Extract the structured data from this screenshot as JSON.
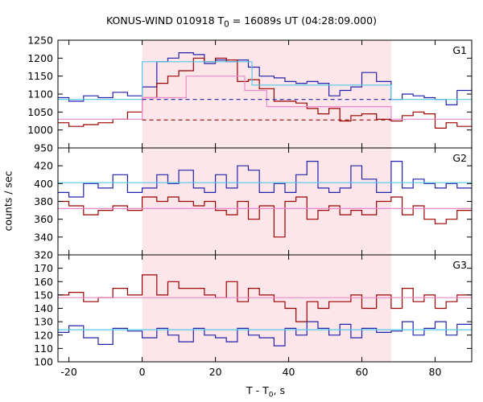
{
  "title_main": "KONUS-WIND 010918 T",
  "title_sub": "0",
  "title_rest": " = 16089s UT (04:28:09.000)",
  "ylabel": "counts / sec",
  "xlabel_main": "T - T",
  "xlabel_sub": "0",
  "xlabel_rest": ", s",
  "colors": {
    "blue": "#2222aa",
    "darkred": "#990000",
    "lightblue": "#55c8e8",
    "pink": "#ee88cc",
    "shade": "#fde6ea"
  },
  "chart_data": [
    {
      "type": "line",
      "panel": "G1",
      "xlim": [
        -23,
        90
      ],
      "ylim": [
        950,
        1250
      ],
      "yticks": [
        950,
        1000,
        1050,
        1100,
        1150,
        1200,
        1250
      ],
      "shaded_interval": [
        0,
        68
      ],
      "series": [
        {
          "color": "blue",
          "step": true,
          "x": [
            -23,
            -20,
            -16,
            -12,
            -8,
            -4,
            0,
            4,
            7,
            10,
            14,
            17,
            20,
            23,
            26,
            29,
            32,
            36,
            39,
            42,
            45,
            48,
            51,
            54,
            57,
            60,
            64,
            68,
            71,
            74,
            77,
            80,
            83,
            86,
            90
          ],
          "y": [
            1090,
            1080,
            1095,
            1090,
            1105,
            1095,
            1120,
            1190,
            1200,
            1215,
            1210,
            1185,
            1195,
            1190,
            1195,
            1175,
            1150,
            1145,
            1135,
            1130,
            1135,
            1130,
            1095,
            1110,
            1120,
            1160,
            1135,
            1085,
            1100,
            1095,
            1090,
            1085,
            1070,
            1110,
            1080
          ]
        },
        {
          "color": "darkred",
          "step": true,
          "x": [
            -23,
            -20,
            -16,
            -12,
            -8,
            -4,
            0,
            4,
            7,
            10,
            14,
            17,
            20,
            23,
            26,
            29,
            32,
            36,
            39,
            42,
            45,
            48,
            51,
            54,
            57,
            60,
            64,
            68,
            71,
            74,
            77,
            80,
            83,
            86,
            90
          ],
          "y": [
            1020,
            1010,
            1015,
            1020,
            1030,
            1050,
            1090,
            1130,
            1150,
            1165,
            1200,
            1190,
            1200,
            1195,
            1135,
            1140,
            1115,
            1080,
            1080,
            1075,
            1060,
            1045,
            1060,
            1025,
            1040,
            1045,
            1030,
            1025,
            1040,
            1050,
            1045,
            1005,
            1020,
            1010,
            1040
          ]
        },
        {
          "color": "lightblue",
          "step": false,
          "x": [
            -23,
            0,
            0,
            30,
            30,
            68,
            68,
            90
          ],
          "y": [
            1085,
            1085,
            1190,
            1190,
            1125,
            1125,
            1085,
            1085
          ]
        },
        {
          "color": "pink",
          "step": false,
          "x": [
            -23,
            0,
            0,
            12,
            12,
            28,
            28,
            34,
            34,
            68,
            68,
            90
          ],
          "y": [
            1030,
            1030,
            1090,
            1090,
            1150,
            1150,
            1110,
            1110,
            1065,
            1065,
            1030,
            1030
          ]
        },
        {
          "color": "blue",
          "dashed": true,
          "x": [
            0,
            68
          ],
          "y": [
            1085,
            1085
          ]
        },
        {
          "color": "darkred",
          "dashed": true,
          "x": [
            0,
            68
          ],
          "y": [
            1028,
            1028
          ]
        }
      ]
    },
    {
      "type": "line",
      "panel": "G2",
      "xlim": [
        -23,
        90
      ],
      "ylim": [
        320,
        440
      ],
      "yticks": [
        320,
        340,
        360,
        380,
        400,
        420
      ],
      "shaded_interval": [
        0,
        68
      ],
      "series": [
        {
          "color": "blue",
          "step": true,
          "x": [
            -23,
            -20,
            -16,
            -12,
            -8,
            -4,
            0,
            4,
            7,
            10,
            14,
            17,
            20,
            23,
            26,
            29,
            32,
            36,
            39,
            42,
            45,
            48,
            51,
            54,
            57,
            60,
            64,
            68,
            71,
            74,
            77,
            80,
            83,
            86,
            90
          ],
          "y": [
            390,
            385,
            400,
            395,
            410,
            390,
            395,
            410,
            400,
            415,
            395,
            390,
            410,
            395,
            420,
            415,
            390,
            400,
            390,
            410,
            425,
            395,
            390,
            395,
            420,
            405,
            390,
            425,
            395,
            405,
            400,
            395,
            400,
            395,
            395
          ]
        },
        {
          "color": "darkred",
          "step": true,
          "x": [
            -23,
            -20,
            -16,
            -12,
            -8,
            -4,
            0,
            4,
            7,
            10,
            14,
            17,
            20,
            23,
            26,
            29,
            32,
            36,
            39,
            42,
            45,
            48,
            51,
            54,
            57,
            60,
            64,
            68,
            71,
            74,
            77,
            80,
            83,
            86,
            90
          ],
          "y": [
            380,
            375,
            365,
            370,
            375,
            370,
            385,
            380,
            385,
            380,
            375,
            380,
            370,
            365,
            380,
            360,
            375,
            340,
            380,
            385,
            360,
            370,
            375,
            365,
            370,
            365,
            380,
            385,
            365,
            375,
            360,
            355,
            360,
            370,
            380
          ]
        },
        {
          "color": "lightblue",
          "step": false,
          "x": [
            -23,
            90
          ],
          "y": [
            401,
            401
          ]
        },
        {
          "color": "pink",
          "step": false,
          "x": [
            -23,
            90
          ],
          "y": [
            372,
            372
          ]
        }
      ]
    },
    {
      "type": "line",
      "panel": "G3",
      "xlim": [
        -23,
        90
      ],
      "ylim": [
        100,
        180
      ],
      "yticks": [
        100,
        110,
        120,
        130,
        140,
        150,
        160,
        170
      ],
      "shaded_interval": [
        0,
        68
      ],
      "series": [
        {
          "color": "blue",
          "step": true,
          "x": [
            -23,
            -20,
            -16,
            -12,
            -8,
            -4,
            0,
            4,
            7,
            10,
            14,
            17,
            20,
            23,
            26,
            29,
            32,
            36,
            39,
            42,
            45,
            48,
            51,
            54,
            57,
            60,
            64,
            68,
            71,
            74,
            77,
            80,
            83,
            86,
            90
          ],
          "y": [
            122,
            127,
            118,
            113,
            125,
            123,
            118,
            125,
            120,
            115,
            125,
            120,
            118,
            115,
            125,
            120,
            118,
            112,
            125,
            120,
            130,
            125,
            120,
            128,
            118,
            125,
            122,
            123,
            130,
            120,
            125,
            130,
            120,
            128,
            122
          ]
        },
        {
          "color": "darkred",
          "step": true,
          "x": [
            -23,
            -20,
            -16,
            -12,
            -8,
            -4,
            0,
            4,
            7,
            10,
            14,
            17,
            20,
            23,
            26,
            29,
            32,
            36,
            39,
            42,
            45,
            48,
            51,
            54,
            57,
            60,
            64,
            68,
            71,
            74,
            77,
            80,
            83,
            86,
            90
          ],
          "y": [
            150,
            152,
            145,
            148,
            155,
            150,
            165,
            150,
            160,
            155,
            155,
            150,
            148,
            160,
            145,
            155,
            150,
            145,
            140,
            130,
            145,
            140,
            145,
            145,
            150,
            140,
            150,
            140,
            155,
            145,
            150,
            140,
            145,
            150,
            152
          ]
        },
        {
          "color": "lightblue",
          "step": false,
          "x": [
            -23,
            90
          ],
          "y": [
            124,
            124
          ]
        },
        {
          "color": "pink",
          "step": false,
          "x": [
            -23,
            90
          ],
          "y": [
            148,
            148
          ]
        }
      ]
    }
  ],
  "panel_labels": [
    "G1",
    "G2",
    "G3"
  ],
  "xticks": [
    -20,
    0,
    20,
    40,
    60,
    80
  ]
}
